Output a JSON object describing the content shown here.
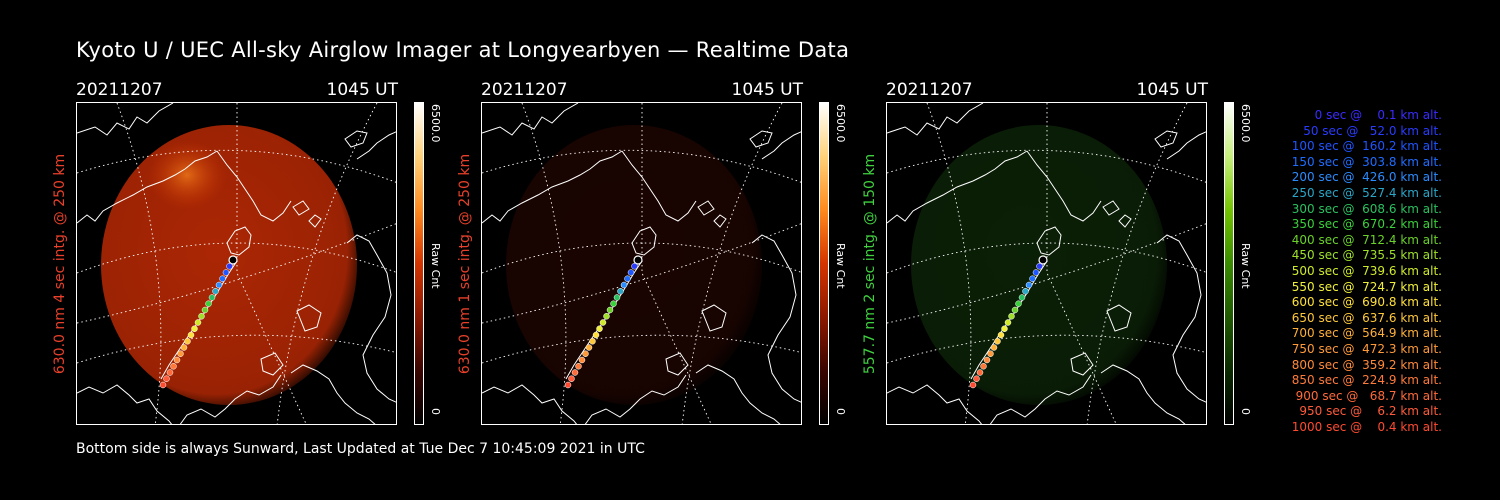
{
  "title": "Kyoto U / UEC All-sky Airglow Imager at Longyearbyen — Realtime Data",
  "footer": "Bottom side is always Sunward, Last Updated at Tue Dec  7 10:45:09 2021 in UTC",
  "panels": [
    {
      "date": "20211207",
      "time": "1045 UT",
      "ylabel": "630.0 nm 4 sec intg. @ 250 km",
      "label_color": "#e8402a",
      "colorbar_max": "6500.0",
      "colorbar_min": "0",
      "colorbar_unit": "Raw Cnt",
      "colormap": [
        "#000000",
        "#3a0500",
        "#8c1800",
        "#d43500",
        "#ff8a1e",
        "#ffd27a",
        "#ffffff"
      ],
      "glow_color": "#c92d05",
      "glow_intensity": 0.85
    },
    {
      "date": "20211207",
      "time": "1045 UT",
      "ylabel": "630.0 nm 1 sec intg. @ 250 km",
      "label_color": "#e8402a",
      "colorbar_max": "6500.0",
      "colorbar_min": "0",
      "colorbar_unit": "Raw Cnt",
      "colormap": [
        "#000000",
        "#3a0500",
        "#8c1800",
        "#d43500",
        "#ff8a1e",
        "#ffd27a",
        "#ffffff"
      ],
      "glow_color": "#4a0c03",
      "glow_intensity": 0.35
    },
    {
      "date": "20211207",
      "time": "1045 UT",
      "ylabel": "557.7 nm 2 sec intg. @ 150 km",
      "label_color": "#3fd13f",
      "colorbar_max": "6500.0",
      "colorbar_min": "0",
      "colorbar_unit": "Raw Cnt",
      "colormap": [
        "#000000",
        "#0a2a00",
        "#1f5a00",
        "#3a8c00",
        "#74c400",
        "#c6ef7a",
        "#ffffff"
      ],
      "glow_color": "#1a4f10",
      "glow_intensity": 0.4
    }
  ],
  "trajectory_legend": [
    {
      "text": "   0 sec @    0.1 km alt.",
      "color": "#3a2bff"
    },
    {
      "text": "  50 sec @   52.0 km alt.",
      "color": "#2a3cff"
    },
    {
      "text": " 100 sec @  160.2 km alt.",
      "color": "#1f55ff"
    },
    {
      "text": " 150 sec @  303.8 km alt.",
      "color": "#1f6dff"
    },
    {
      "text": " 200 sec @  426.0 km alt.",
      "color": "#2a8cff"
    },
    {
      "text": " 250 sec @  527.4 km alt.",
      "color": "#2aa6c8"
    },
    {
      "text": " 300 sec @  608.6 km alt.",
      "color": "#2ac060"
    },
    {
      "text": " 350 sec @  670.2 km alt.",
      "color": "#3ad13a"
    },
    {
      "text": " 400 sec @  712.4 km alt.",
      "color": "#6ad12a"
    },
    {
      "text": " 450 sec @  735.5 km alt.",
      "color": "#a0e02a"
    },
    {
      "text": " 500 sec @  739.6 km alt.",
      "color": "#d0ea2a"
    },
    {
      "text": " 550 sec @  724.7 km alt.",
      "color": "#f0f03a"
    },
    {
      "text": " 600 sec @  690.8 km alt.",
      "color": "#ffe03a"
    },
    {
      "text": " 650 sec @  637.6 km alt.",
      "color": "#ffc83a"
    },
    {
      "text": " 700 sec @  564.9 km alt.",
      "color": "#ffb03a"
    },
    {
      "text": " 750 sec @  472.3 km alt.",
      "color": "#ff9a3a"
    },
    {
      "text": " 800 sec @  359.2 km alt.",
      "color": "#ff8a3a"
    },
    {
      "text": " 850 sec @  224.9 km alt.",
      "color": "#ff7a3a"
    },
    {
      "text": " 900 sec @   68.7 km alt.",
      "color": "#ff6a3a"
    },
    {
      "text": " 950 sec @    6.2 km alt.",
      "color": "#ff5a3a"
    },
    {
      "text": "1000 sec @    0.4 km alt.",
      "color": "#ff4a30"
    }
  ]
}
